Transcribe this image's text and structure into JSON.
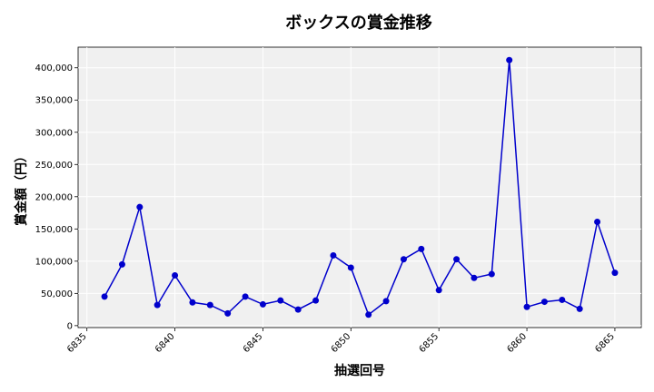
{
  "chart_data": {
    "type": "line",
    "title": "ボックスの賞金推移",
    "xlabel": "抽選回号",
    "ylabel": "賞金額（円）",
    "xlim": [
      6834.5,
      6866.5
    ],
    "ylim": [
      -3000,
      432000
    ],
    "x_ticks": [
      6835,
      6840,
      6845,
      6850,
      6855,
      6860,
      6865
    ],
    "y_ticks": [
      0,
      50000,
      100000,
      150000,
      200000,
      250000,
      300000,
      350000,
      400000
    ],
    "y_tick_labels": [
      "0",
      "50,000",
      "100,000",
      "150,000",
      "200,000",
      "250,000",
      "300,000",
      "350,000",
      "400,000"
    ],
    "grid": true,
    "series": [
      {
        "color": "#0000cc",
        "marker": "circle",
        "x": [
          6836,
          6837,
          6838,
          6839,
          6840,
          6841,
          6842,
          6843,
          6844,
          6845,
          6846,
          6847,
          6848,
          6849,
          6850,
          6851,
          6852,
          6853,
          6854,
          6855,
          6856,
          6857,
          6858,
          6859,
          6860,
          6861,
          6862,
          6863,
          6864,
          6865
        ],
        "y": [
          45000,
          95000,
          184000,
          32000,
          78000,
          36000,
          32000,
          19000,
          45000,
          33000,
          39000,
          25000,
          39000,
          109000,
          90000,
          17000,
          38000,
          103000,
          119000,
          55000,
          103000,
          74000,
          80000,
          412000,
          29000,
          37000,
          40000,
          26000,
          161000,
          82000
        ]
      }
    ]
  }
}
